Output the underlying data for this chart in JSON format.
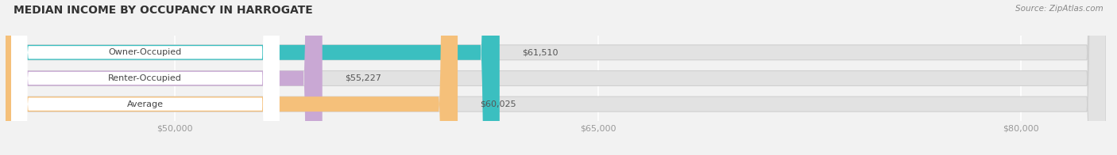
{
  "title": "MEDIAN INCOME BY OCCUPANCY IN HARROGATE",
  "source": "Source: ZipAtlas.com",
  "categories": [
    "Owner-Occupied",
    "Renter-Occupied",
    "Average"
  ],
  "values": [
    61510,
    55227,
    60025
  ],
  "bar_colors": [
    "#3bbfc0",
    "#c9a8d4",
    "#f5c07a"
  ],
  "bar_labels": [
    "$61,510",
    "$55,227",
    "$60,025"
  ],
  "xlim_min": 44000,
  "xlim_max": 83000,
  "xticks": [
    50000,
    65000,
    80000
  ],
  "xtick_labels": [
    "$50,000",
    "$65,000",
    "$80,000"
  ],
  "background_color": "#f2f2f2",
  "bar_background_color": "#e2e2e2",
  "bar_bg_border_color": "#d0d0d0",
  "title_fontsize": 10,
  "label_fontsize": 8,
  "source_fontsize": 7.5,
  "bar_height": 0.58,
  "title_color": "#333333",
  "tick_color": "#999999",
  "source_color": "#888888",
  "grid_color": "#ffffff",
  "label_pill_color": "#ffffff",
  "label_text_color": "#555555",
  "value_label_color": "#555555"
}
